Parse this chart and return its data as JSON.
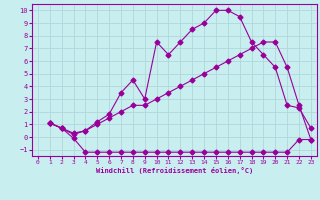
{
  "xlabel": "Windchill (Refroidissement éolien,°C)",
  "ylabel": "",
  "bg_color": "#c8eef0",
  "grid_color": "#b0d8da",
  "line_color": "#990099",
  "xlim": [
    -0.5,
    23.5
  ],
  "ylim": [
    -1.5,
    10.5
  ],
  "xticks": [
    0,
    1,
    2,
    3,
    4,
    5,
    6,
    7,
    8,
    9,
    10,
    11,
    12,
    13,
    14,
    15,
    16,
    17,
    18,
    19,
    20,
    21,
    22,
    23
  ],
  "yticks": [
    -1,
    0,
    1,
    2,
    3,
    4,
    5,
    6,
    7,
    8,
    9,
    10
  ],
  "line1_x": [
    1,
    2,
    3,
    4,
    5,
    6,
    7,
    8,
    9,
    10,
    11,
    12,
    13,
    14,
    15,
    16,
    17,
    18,
    19,
    20,
    21,
    22,
    23
  ],
  "line1_y": [
    1.1,
    0.7,
    -0.1,
    -1.2,
    -1.2,
    -1.2,
    -1.2,
    -1.2,
    -1.2,
    -1.2,
    -1.2,
    -1.2,
    -1.2,
    -1.2,
    -1.2,
    -1.2,
    -1.2,
    -1.2,
    -1.2,
    -1.2,
    -1.2,
    -0.2,
    -0.2
  ],
  "line2_x": [
    1,
    2,
    3,
    4,
    5,
    6,
    7,
    8,
    9,
    10,
    11,
    12,
    13,
    14,
    15,
    16,
    17,
    18,
    19,
    20,
    21,
    22,
    23
  ],
  "line2_y": [
    1.1,
    0.7,
    0.2,
    0.5,
    1.0,
    1.5,
    2.0,
    2.5,
    2.5,
    3.0,
    3.5,
    4.0,
    4.5,
    5.0,
    5.5,
    6.0,
    6.5,
    7.0,
    7.5,
    7.5,
    5.5,
    2.5,
    -0.2
  ],
  "line3_x": [
    1,
    2,
    3,
    4,
    5,
    6,
    7,
    8,
    9,
    10,
    11,
    12,
    13,
    14,
    15,
    16,
    17,
    18,
    19,
    20,
    21,
    22,
    23
  ],
  "line3_y": [
    1.1,
    0.7,
    0.3,
    0.5,
    1.2,
    1.8,
    3.5,
    4.5,
    3.0,
    7.5,
    6.5,
    7.5,
    8.5,
    9.0,
    10.0,
    10.0,
    9.5,
    7.5,
    6.5,
    5.5,
    2.5,
    2.3,
    0.7
  ]
}
